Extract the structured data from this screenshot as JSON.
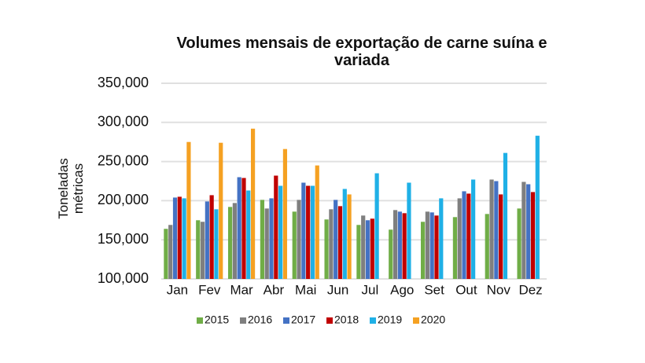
{
  "chart_data": {
    "type": "bar",
    "title": "Volumes mensais de exportação de carne suína e variada",
    "y_label": "Toneladas métricas",
    "categories": [
      "Jan",
      "Fev",
      "Mar",
      "Abr",
      "Mai",
      "Jun",
      "Jul",
      "Ago",
      "Set",
      "Out",
      "Nov",
      "Dez"
    ],
    "series": [
      {
        "name": "2015",
        "color": "#70ad47",
        "values": [
          164000,
          175000,
          192000,
          201000,
          186000,
          176000,
          169000,
          163000,
          173000,
          179000,
          183000,
          190000
        ]
      },
      {
        "name": "2016",
        "color": "#7f7f7f",
        "values": [
          169000,
          173000,
          197000,
          190000,
          201000,
          189000,
          181000,
          188000,
          186000,
          203000,
          227000,
          224000
        ]
      },
      {
        "name": "2017",
        "color": "#4472c4",
        "values": [
          204000,
          199000,
          230000,
          203000,
          223000,
          201000,
          175000,
          186000,
          185000,
          212000,
          225000,
          221000
        ]
      },
      {
        "name": "2018",
        "color": "#c00000",
        "values": [
          205000,
          207000,
          229000,
          232000,
          219000,
          193000,
          177000,
          184000,
          181000,
          209000,
          208000,
          211000
        ]
      },
      {
        "name": "2019",
        "color": "#1fb0e6",
        "values": [
          203000,
          189000,
          213000,
          219000,
          219000,
          215000,
          235000,
          223000,
          203000,
          227000,
          261000,
          283000
        ]
      },
      {
        "name": "2020",
        "color": "#f5a122",
        "values": [
          275000,
          274000,
          292000,
          266000,
          245000,
          208000,
          null,
          null,
          null,
          null,
          null,
          null
        ]
      }
    ],
    "ylim": [
      100000,
      350000
    ],
    "yticks": [
      {
        "value": 100000,
        "label": "100,000"
      },
      {
        "value": 150000,
        "label": "150,000"
      },
      {
        "value": 200000,
        "label": "200,000"
      },
      {
        "value": 250000,
        "label": "250,000"
      },
      {
        "value": 300000,
        "label": "300,000"
      },
      {
        "value": 350000,
        "label": "350,000"
      }
    ],
    "grid": true,
    "legend": "bottom"
  }
}
